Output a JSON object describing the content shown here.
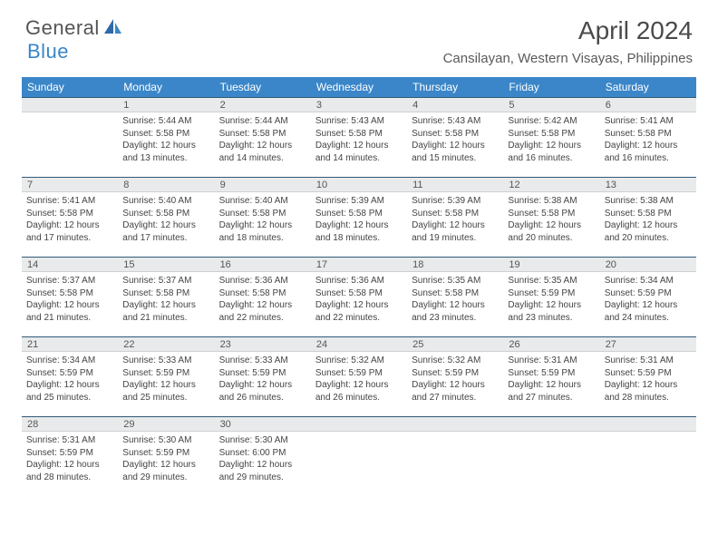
{
  "logo": {
    "text1": "General",
    "text2": "Blue"
  },
  "title": "April 2024",
  "location": "Cansilayan, Western Visayas, Philippines",
  "colors": {
    "header_bg": "#3a86c8",
    "header_text": "#ffffff",
    "daynum_bg": "#e9eaeb",
    "daynum_border_top": "#2f5a7a",
    "body_text": "#444444",
    "title_text": "#4a4a4a"
  },
  "weekdays": [
    "Sunday",
    "Monday",
    "Tuesday",
    "Wednesday",
    "Thursday",
    "Friday",
    "Saturday"
  ],
  "weeks": [
    [
      {
        "n": "",
        "sr": "",
        "ss": "",
        "dl": ""
      },
      {
        "n": "1",
        "sr": "5:44 AM",
        "ss": "5:58 PM",
        "dl": "12 hours and 13 minutes."
      },
      {
        "n": "2",
        "sr": "5:44 AM",
        "ss": "5:58 PM",
        "dl": "12 hours and 14 minutes."
      },
      {
        "n": "3",
        "sr": "5:43 AM",
        "ss": "5:58 PM",
        "dl": "12 hours and 14 minutes."
      },
      {
        "n": "4",
        "sr": "5:43 AM",
        "ss": "5:58 PM",
        "dl": "12 hours and 15 minutes."
      },
      {
        "n": "5",
        "sr": "5:42 AM",
        "ss": "5:58 PM",
        "dl": "12 hours and 16 minutes."
      },
      {
        "n": "6",
        "sr": "5:41 AM",
        "ss": "5:58 PM",
        "dl": "12 hours and 16 minutes."
      }
    ],
    [
      {
        "n": "7",
        "sr": "5:41 AM",
        "ss": "5:58 PM",
        "dl": "12 hours and 17 minutes."
      },
      {
        "n": "8",
        "sr": "5:40 AM",
        "ss": "5:58 PM",
        "dl": "12 hours and 17 minutes."
      },
      {
        "n": "9",
        "sr": "5:40 AM",
        "ss": "5:58 PM",
        "dl": "12 hours and 18 minutes."
      },
      {
        "n": "10",
        "sr": "5:39 AM",
        "ss": "5:58 PM",
        "dl": "12 hours and 18 minutes."
      },
      {
        "n": "11",
        "sr": "5:39 AM",
        "ss": "5:58 PM",
        "dl": "12 hours and 19 minutes."
      },
      {
        "n": "12",
        "sr": "5:38 AM",
        "ss": "5:58 PM",
        "dl": "12 hours and 20 minutes."
      },
      {
        "n": "13",
        "sr": "5:38 AM",
        "ss": "5:58 PM",
        "dl": "12 hours and 20 minutes."
      }
    ],
    [
      {
        "n": "14",
        "sr": "5:37 AM",
        "ss": "5:58 PM",
        "dl": "12 hours and 21 minutes."
      },
      {
        "n": "15",
        "sr": "5:37 AM",
        "ss": "5:58 PM",
        "dl": "12 hours and 21 minutes."
      },
      {
        "n": "16",
        "sr": "5:36 AM",
        "ss": "5:58 PM",
        "dl": "12 hours and 22 minutes."
      },
      {
        "n": "17",
        "sr": "5:36 AM",
        "ss": "5:58 PM",
        "dl": "12 hours and 22 minutes."
      },
      {
        "n": "18",
        "sr": "5:35 AM",
        "ss": "5:58 PM",
        "dl": "12 hours and 23 minutes."
      },
      {
        "n": "19",
        "sr": "5:35 AM",
        "ss": "5:59 PM",
        "dl": "12 hours and 23 minutes."
      },
      {
        "n": "20",
        "sr": "5:34 AM",
        "ss": "5:59 PM",
        "dl": "12 hours and 24 minutes."
      }
    ],
    [
      {
        "n": "21",
        "sr": "5:34 AM",
        "ss": "5:59 PM",
        "dl": "12 hours and 25 minutes."
      },
      {
        "n": "22",
        "sr": "5:33 AM",
        "ss": "5:59 PM",
        "dl": "12 hours and 25 minutes."
      },
      {
        "n": "23",
        "sr": "5:33 AM",
        "ss": "5:59 PM",
        "dl": "12 hours and 26 minutes."
      },
      {
        "n": "24",
        "sr": "5:32 AM",
        "ss": "5:59 PM",
        "dl": "12 hours and 26 minutes."
      },
      {
        "n": "25",
        "sr": "5:32 AM",
        "ss": "5:59 PM",
        "dl": "12 hours and 27 minutes."
      },
      {
        "n": "26",
        "sr": "5:31 AM",
        "ss": "5:59 PM",
        "dl": "12 hours and 27 minutes."
      },
      {
        "n": "27",
        "sr": "5:31 AM",
        "ss": "5:59 PM",
        "dl": "12 hours and 28 minutes."
      }
    ],
    [
      {
        "n": "28",
        "sr": "5:31 AM",
        "ss": "5:59 PM",
        "dl": "12 hours and 28 minutes."
      },
      {
        "n": "29",
        "sr": "5:30 AM",
        "ss": "5:59 PM",
        "dl": "12 hours and 29 minutes."
      },
      {
        "n": "30",
        "sr": "5:30 AM",
        "ss": "6:00 PM",
        "dl": "12 hours and 29 minutes."
      },
      {
        "n": "",
        "sr": "",
        "ss": "",
        "dl": ""
      },
      {
        "n": "",
        "sr": "",
        "ss": "",
        "dl": ""
      },
      {
        "n": "",
        "sr": "",
        "ss": "",
        "dl": ""
      },
      {
        "n": "",
        "sr": "",
        "ss": "",
        "dl": ""
      }
    ]
  ],
  "labels": {
    "sunrise": "Sunrise:",
    "sunset": "Sunset:",
    "daylight": "Daylight:"
  }
}
